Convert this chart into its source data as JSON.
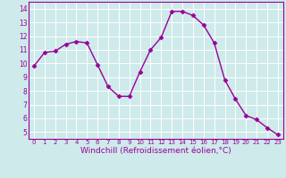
{
  "x": [
    0,
    1,
    2,
    3,
    4,
    5,
    6,
    7,
    8,
    9,
    10,
    11,
    12,
    13,
    14,
    15,
    16,
    17,
    18,
    19,
    20,
    21,
    22,
    23
  ],
  "y": [
    9.8,
    10.8,
    10.9,
    11.4,
    11.6,
    11.5,
    9.9,
    8.3,
    7.6,
    7.6,
    9.4,
    11.0,
    11.9,
    13.8,
    13.8,
    13.5,
    12.8,
    11.5,
    8.8,
    7.4,
    6.2,
    5.9,
    5.3,
    4.8
  ],
  "line_color": "#990099",
  "marker": "D",
  "marker_size": 2.5,
  "linewidth": 1.0,
  "xlabel": "Windchill (Refroidissement éolien,°C)",
  "xlabel_fontsize": 6.5,
  "xtick_labels": [
    "0",
    "1",
    "2",
    "3",
    "4",
    "5",
    "6",
    "7",
    "8",
    "9",
    "10",
    "11",
    "12",
    "13",
    "14",
    "15",
    "16",
    "17",
    "18",
    "19",
    "20",
    "21",
    "22",
    "23"
  ],
  "ytick_values": [
    5,
    6,
    7,
    8,
    9,
    10,
    11,
    12,
    13,
    14
  ],
  "ylim": [
    4.5,
    14.5
  ],
  "xlim": [
    -0.5,
    23.5
  ],
  "bg_color": "#ceeaea",
  "grid_color": "#ffffff",
  "tick_color": "#990099",
  "spine_color": "#990099",
  "xtick_fontsize": 5.0,
  "ytick_fontsize": 5.5
}
